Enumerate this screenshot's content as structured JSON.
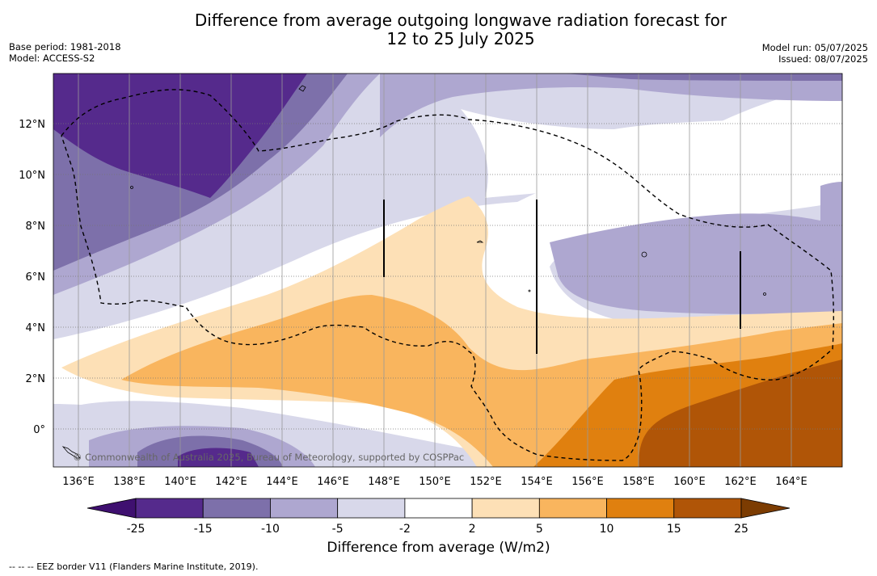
{
  "title_line1": "Difference from average outgoing longwave radiation forecast for",
  "title_line2": "12 to 25 July 2025",
  "meta_left": [
    "Base period: 1981-2018",
    "Model: ACCESS-S2"
  ],
  "meta_right": [
    "Model run: 05/07/2025",
    "Issued: 08/07/2025"
  ],
  "lon_labels": [
    "136°E",
    "138°E",
    "140°E",
    "142°E",
    "144°E",
    "146°E",
    "148°E",
    "150°E",
    "152°E",
    "154°E",
    "156°E",
    "158°E",
    "160°E",
    "162°E",
    "164°E"
  ],
  "lat_labels": [
    "12°N",
    "10°N",
    "8°N",
    "6°N",
    "4°N",
    "2°N",
    "0°"
  ],
  "credit": "© Commonwealth of Australia 2025, Bureau of Meteorology, supported by COSPPac",
  "colorbar": {
    "ticks": [
      "-25",
      "-15",
      "-10",
      "-5",
      "-2",
      "2",
      "5",
      "10",
      "15",
      "25"
    ],
    "colors": [
      "#3f1070",
      "#552a8c",
      "#7d70aa",
      "#aea7d0",
      "#d8d8ea",
      "#ffffff",
      "#fde0b6",
      "#f9b55e",
      "#e0800f",
      "#b05507",
      "#7c3c02"
    ],
    "label": "Difference from average (W/m2)"
  },
  "legend_note": "--  --  -- EEZ border V11 (Flanders Marine Institute, 2019)."
}
